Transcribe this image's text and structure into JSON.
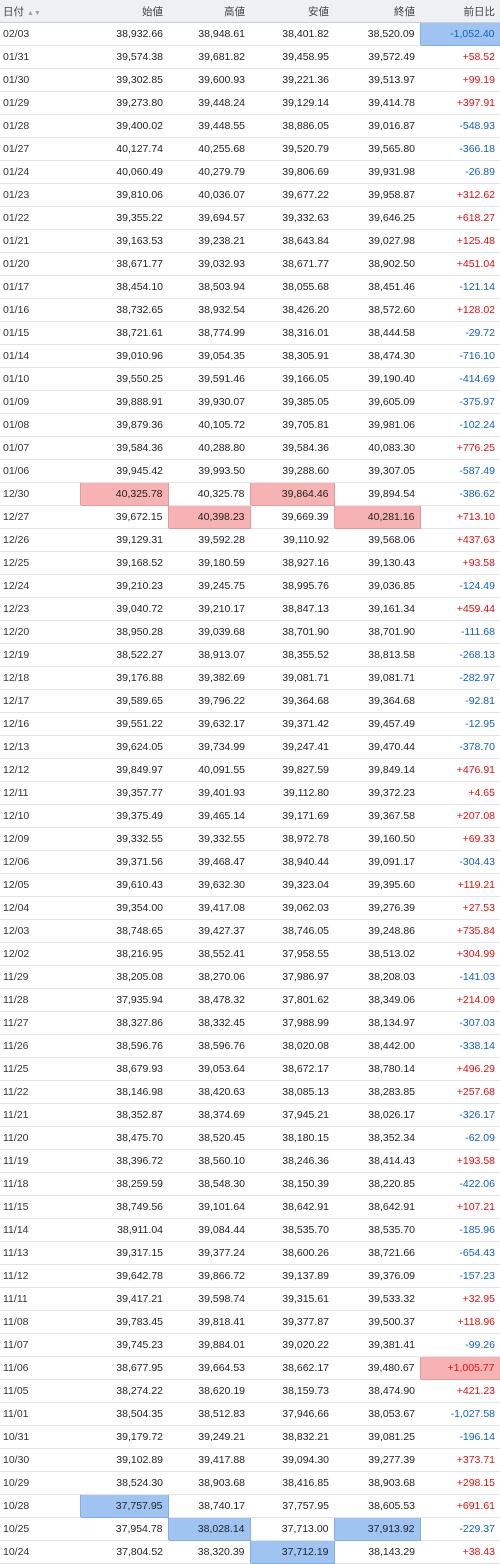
{
  "header": {
    "date": "日付",
    "open": "始値",
    "high": "高値",
    "low": "安値",
    "close": "終値",
    "change": "前日比",
    "sort_glyph": "▲▼"
  },
  "colors": {
    "positive": "#e01010",
    "negative": "#1060c0",
    "highlight_red": "#f7b3b3",
    "highlight_blue": "#9fc4f2"
  },
  "rows": [
    {
      "d": "02/03",
      "o": "38,932.66",
      "h": "38,948.61",
      "l": "38,401.82",
      "c": "38,520.09",
      "ch": "-1,052.40",
      "hl": {
        "ch": "blue"
      }
    },
    {
      "d": "01/31",
      "o": "39,574.38",
      "h": "39,681.82",
      "l": "39,458.95",
      "c": "39,572.49",
      "ch": "+58.52"
    },
    {
      "d": "01/30",
      "o": "39,302.85",
      "h": "39,600.93",
      "l": "39,221.36",
      "c": "39,513.97",
      "ch": "+99.19"
    },
    {
      "d": "01/29",
      "o": "39,273.80",
      "h": "39,448.24",
      "l": "39,129.14",
      "c": "39,414.78",
      "ch": "+397.91"
    },
    {
      "d": "01/28",
      "o": "39,400.02",
      "h": "39,448.55",
      "l": "38,886.05",
      "c": "39,016.87",
      "ch": "-548.93"
    },
    {
      "d": "01/27",
      "o": "40,127.74",
      "h": "40,255.68",
      "l": "39,520.79",
      "c": "39,565.80",
      "ch": "-366.18"
    },
    {
      "d": "01/24",
      "o": "40,060.49",
      "h": "40,279.79",
      "l": "39,806.69",
      "c": "39,931.98",
      "ch": "-26.89"
    },
    {
      "d": "01/23",
      "o": "39,810.06",
      "h": "40,036.07",
      "l": "39,677.22",
      "c": "39,958.87",
      "ch": "+312.62"
    },
    {
      "d": "01/22",
      "o": "39,355.22",
      "h": "39,694.57",
      "l": "39,332.63",
      "c": "39,646.25",
      "ch": "+618.27"
    },
    {
      "d": "01/21",
      "o": "39,163.53",
      "h": "39,238.21",
      "l": "38,643.84",
      "c": "39,027.98",
      "ch": "+125.48"
    },
    {
      "d": "01/20",
      "o": "38,671.77",
      "h": "39,032.93",
      "l": "38,671.77",
      "c": "38,902.50",
      "ch": "+451.04"
    },
    {
      "d": "01/17",
      "o": "38,454.10",
      "h": "38,503.94",
      "l": "38,055.68",
      "c": "38,451.46",
      "ch": "-121.14"
    },
    {
      "d": "01/16",
      "o": "38,732.65",
      "h": "38,932.54",
      "l": "38,426.20",
      "c": "38,572.60",
      "ch": "+128.02"
    },
    {
      "d": "01/15",
      "o": "38,721.61",
      "h": "38,774.99",
      "l": "38,316.01",
      "c": "38,444.58",
      "ch": "-29.72"
    },
    {
      "d": "01/14",
      "o": "39,010.96",
      "h": "39,054.35",
      "l": "38,305.91",
      "c": "38,474.30",
      "ch": "-716.10"
    },
    {
      "d": "01/10",
      "o": "39,550.25",
      "h": "39,591.46",
      "l": "39,166.05",
      "c": "39,190.40",
      "ch": "-414.69"
    },
    {
      "d": "01/09",
      "o": "39,888.91",
      "h": "39,930.07",
      "l": "39,385.05",
      "c": "39,605.09",
      "ch": "-375.97"
    },
    {
      "d": "01/08",
      "o": "39,879.36",
      "h": "40,105.72",
      "l": "39,705.81",
      "c": "39,981.06",
      "ch": "-102.24"
    },
    {
      "d": "01/07",
      "o": "39,584.36",
      "h": "40,288.80",
      "l": "39,584.36",
      "c": "40,083.30",
      "ch": "+776.25"
    },
    {
      "d": "01/06",
      "o": "39,945.42",
      "h": "39,993.50",
      "l": "39,288.60",
      "c": "39,307.05",
      "ch": "-587.49"
    },
    {
      "d": "12/30",
      "o": "40,325.78",
      "h": "40,325.78",
      "l": "39,864.46",
      "c": "39,894.54",
      "ch": "-386.62",
      "hl": {
        "o": "red",
        "l": "red"
      }
    },
    {
      "d": "12/27",
      "o": "39,672.15",
      "h": "40,398.23",
      "l": "39,669.39",
      "c": "40,281.16",
      "ch": "+713.10",
      "hl": {
        "h": "red",
        "c": "red"
      }
    },
    {
      "d": "12/26",
      "o": "39,129.31",
      "h": "39,592.28",
      "l": "39,110.92",
      "c": "39,568.06",
      "ch": "+437.63"
    },
    {
      "d": "12/25",
      "o": "39,168.52",
      "h": "39,180.59",
      "l": "38,927.16",
      "c": "39,130.43",
      "ch": "+93.58"
    },
    {
      "d": "12/24",
      "o": "39,210.23",
      "h": "39,245.75",
      "l": "38,995.76",
      "c": "39,036.85",
      "ch": "-124.49"
    },
    {
      "d": "12/23",
      "o": "39,040.72",
      "h": "39,210.17",
      "l": "38,847.13",
      "c": "39,161.34",
      "ch": "+459.44"
    },
    {
      "d": "12/20",
      "o": "38,950.28",
      "h": "39,039.68",
      "l": "38,701.90",
      "c": "38,701.90",
      "ch": "-111.68"
    },
    {
      "d": "12/19",
      "o": "38,522.27",
      "h": "38,913.07",
      "l": "38,355.52",
      "c": "38,813.58",
      "ch": "-268.13"
    },
    {
      "d": "12/18",
      "o": "39,176.88",
      "h": "39,382.69",
      "l": "39,081.71",
      "c": "39,081.71",
      "ch": "-282.97"
    },
    {
      "d": "12/17",
      "o": "39,589.65",
      "h": "39,796.22",
      "l": "39,364.68",
      "c": "39,364.68",
      "ch": "-92.81"
    },
    {
      "d": "12/16",
      "o": "39,551.22",
      "h": "39,632.17",
      "l": "39,371.42",
      "c": "39,457.49",
      "ch": "-12.95"
    },
    {
      "d": "12/13",
      "o": "39,624.05",
      "h": "39,734.99",
      "l": "39,247.41",
      "c": "39,470.44",
      "ch": "-378.70"
    },
    {
      "d": "12/12",
      "o": "39,849.97",
      "h": "40,091.55",
      "l": "39,827.59",
      "c": "39,849.14",
      "ch": "+476.91"
    },
    {
      "d": "12/11",
      "o": "39,357.77",
      "h": "39,401.93",
      "l": "39,112.80",
      "c": "39,372.23",
      "ch": "+4.65"
    },
    {
      "d": "12/10",
      "o": "39,375.49",
      "h": "39,465.14",
      "l": "39,171.69",
      "c": "39,367.58",
      "ch": "+207.08"
    },
    {
      "d": "12/09",
      "o": "39,332.55",
      "h": "39,332.55",
      "l": "38,972.78",
      "c": "39,160.50",
      "ch": "+69.33"
    },
    {
      "d": "12/06",
      "o": "39,371.56",
      "h": "39,468.47",
      "l": "38,940.44",
      "c": "39,091.17",
      "ch": "-304.43"
    },
    {
      "d": "12/05",
      "o": "39,610.43",
      "h": "39,632.30",
      "l": "39,323.04",
      "c": "39,395.60",
      "ch": "+119.21"
    },
    {
      "d": "12/04",
      "o": "39,354.00",
      "h": "39,417.08",
      "l": "39,062.03",
      "c": "39,276.39",
      "ch": "+27.53"
    },
    {
      "d": "12/03",
      "o": "38,748.65",
      "h": "39,427.37",
      "l": "38,746.05",
      "c": "39,248.86",
      "ch": "+735.84"
    },
    {
      "d": "12/02",
      "o": "38,216.95",
      "h": "38,552.41",
      "l": "37,958.55",
      "c": "38,513.02",
      "ch": "+304.99"
    },
    {
      "d": "11/29",
      "o": "38,205.08",
      "h": "38,270.06",
      "l": "37,986.97",
      "c": "38,208.03",
      "ch": "-141.03"
    },
    {
      "d": "11/28",
      "o": "37,935.94",
      "h": "38,478.32",
      "l": "37,801.62",
      "c": "38,349.06",
      "ch": "+214.09"
    },
    {
      "d": "11/27",
      "o": "38,327.86",
      "h": "38,332.45",
      "l": "37,988.99",
      "c": "38,134.97",
      "ch": "-307.03"
    },
    {
      "d": "11/26",
      "o": "38,596.76",
      "h": "38,596.76",
      "l": "38,020.08",
      "c": "38,442.00",
      "ch": "-338.14"
    },
    {
      "d": "11/25",
      "o": "38,679.93",
      "h": "39,053.64",
      "l": "38,672.17",
      "c": "38,780.14",
      "ch": "+496.29"
    },
    {
      "d": "11/22",
      "o": "38,146.98",
      "h": "38,420.63",
      "l": "38,085.13",
      "c": "38,283.85",
      "ch": "+257.68"
    },
    {
      "d": "11/21",
      "o": "38,352.87",
      "h": "38,374.69",
      "l": "37,945.21",
      "c": "38,026.17",
      "ch": "-326.17"
    },
    {
      "d": "11/20",
      "o": "38,475.70",
      "h": "38,520.45",
      "l": "38,180.15",
      "c": "38,352.34",
      "ch": "-62.09"
    },
    {
      "d": "11/19",
      "o": "38,396.72",
      "h": "38,560.10",
      "l": "38,246.36",
      "c": "38,414.43",
      "ch": "+193.58"
    },
    {
      "d": "11/18",
      "o": "38,259.59",
      "h": "38,548.30",
      "l": "38,150.39",
      "c": "38,220.85",
      "ch": "-422.06"
    },
    {
      "d": "11/15",
      "o": "38,749.56",
      "h": "39,101.64",
      "l": "38,642.91",
      "c": "38,642.91",
      "ch": "+107.21"
    },
    {
      "d": "11/14",
      "o": "38,911.04",
      "h": "39,084.44",
      "l": "38,535.70",
      "c": "38,535.70",
      "ch": "-185.96"
    },
    {
      "d": "11/13",
      "o": "39,317.15",
      "h": "39,377.24",
      "l": "38,600.26",
      "c": "38,721.66",
      "ch": "-654.43"
    },
    {
      "d": "11/12",
      "o": "39,642.78",
      "h": "39,866.72",
      "l": "39,137.89",
      "c": "39,376.09",
      "ch": "-157.23"
    },
    {
      "d": "11/11",
      "o": "39,417.21",
      "h": "39,598.74",
      "l": "39,315.61",
      "c": "39,533.32",
      "ch": "+32.95"
    },
    {
      "d": "11/08",
      "o": "39,783.45",
      "h": "39,818.41",
      "l": "39,377.87",
      "c": "39,500.37",
      "ch": "+118.96"
    },
    {
      "d": "11/07",
      "o": "39,745.23",
      "h": "39,884.01",
      "l": "39,020.22",
      "c": "39,381.41",
      "ch": "-99.26"
    },
    {
      "d": "11/06",
      "o": "38,677.95",
      "h": "39,664.53",
      "l": "38,662.17",
      "c": "39,480.67",
      "ch": "+1,005.77",
      "hl": {
        "ch": "red"
      }
    },
    {
      "d": "11/05",
      "o": "38,274.22",
      "h": "38,620.19",
      "l": "38,159.73",
      "c": "38,474.90",
      "ch": "+421.23"
    },
    {
      "d": "11/01",
      "o": "38,504.35",
      "h": "38,512.83",
      "l": "37,946.66",
      "c": "38,053.67",
      "ch": "-1,027.58"
    },
    {
      "d": "10/31",
      "o": "39,179.72",
      "h": "39,249.21",
      "l": "38,832.21",
      "c": "39,081.25",
      "ch": "-196.14"
    },
    {
      "d": "10/30",
      "o": "39,102.89",
      "h": "39,417.88",
      "l": "39,094.30",
      "c": "39,277.39",
      "ch": "+373.71"
    },
    {
      "d": "10/29",
      "o": "38,524.30",
      "h": "38,903.68",
      "l": "38,416.85",
      "c": "38,903.68",
      "ch": "+298.15"
    },
    {
      "d": "10/28",
      "o": "37,757.95",
      "h": "38,740.17",
      "l": "37,757.95",
      "c": "38,605.53",
      "ch": "+691.61",
      "hl": {
        "o": "blue"
      }
    },
    {
      "d": "10/25",
      "o": "37,954.78",
      "h": "38,028.14",
      "l": "37,713.00",
      "c": "37,913.92",
      "ch": "-229.37",
      "hl": {
        "h": "blue",
        "c": "blue"
      }
    },
    {
      "d": "10/24",
      "o": "37,804.52",
      "h": "38,320.39",
      "l": "37,712.19",
      "c": "38,143.29",
      "ch": "+38.43",
      "hl": {
        "l": "blue"
      }
    }
  ]
}
